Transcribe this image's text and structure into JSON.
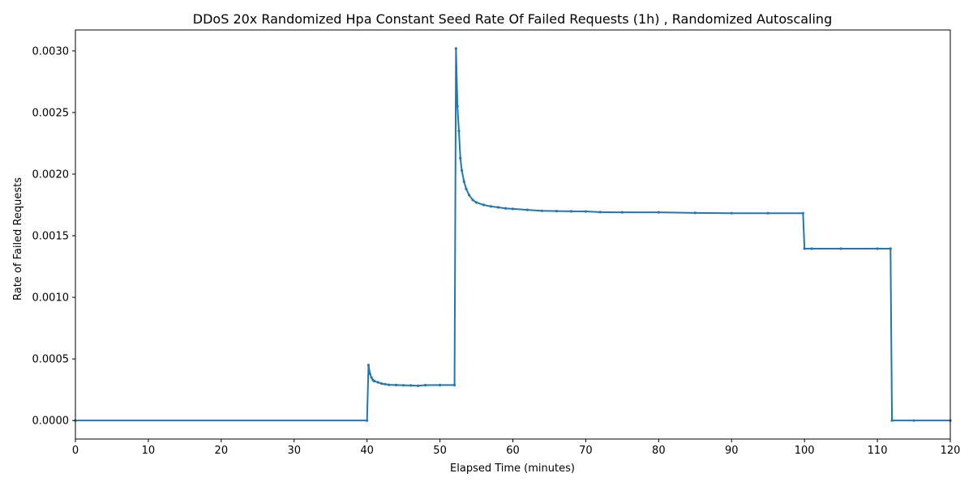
{
  "chart_data": {
    "type": "line",
    "title": "DDoS 20x Randomized Hpa Constant Seed Rate Of Failed Requests (1h) , Randomized Autoscaling",
    "xlabel": "Elapsed Time (minutes)",
    "ylabel": "Rate of Failed Requests",
    "xlim": [
      0,
      120
    ],
    "ylim": [
      -0.00015,
      0.00317
    ],
    "xticks": [
      0,
      10,
      20,
      30,
      40,
      50,
      60,
      70,
      80,
      90,
      100,
      110,
      120
    ],
    "xtick_labels": [
      "0",
      "10",
      "20",
      "30",
      "40",
      "50",
      "60",
      "70",
      "80",
      "90",
      "100",
      "110",
      "120"
    ],
    "yticks": [
      0.0,
      0.0005,
      0.001,
      0.0015,
      0.002,
      0.0025,
      0.003
    ],
    "ytick_labels": [
      "0.0000",
      "0.0005",
      "0.0010",
      "0.0015",
      "0.0020",
      "0.0025",
      "0.0030"
    ],
    "grid": false,
    "legend": "none",
    "color": "#1f77b4",
    "series": [
      {
        "x": [
          0,
          40.0,
          40.2,
          40.4,
          40.6,
          40.8,
          41.0,
          41.5,
          42.0,
          42.5,
          43.0,
          44.0,
          45.0,
          46.0,
          47.0,
          48.0,
          50.0,
          52.0,
          52.2,
          52.4,
          52.6,
          52.8,
          53.0,
          53.3,
          53.6,
          54.0,
          54.5,
          55.0,
          56.0,
          57.0,
          58.0,
          59.0,
          60.0,
          62.0,
          64.0,
          66.0,
          68.0,
          70.0,
          72.0,
          75.0,
          80.0,
          85.0,
          90.0,
          95.0,
          99.8,
          100.0,
          101.0,
          105.0,
          110.0,
          111.8,
          112.0,
          115.0,
          120.0
        ],
        "y": [
          0.0,
          0.0,
          0.00045,
          0.00038,
          0.00035,
          0.00033,
          0.00032,
          0.00031,
          0.0003,
          0.000295,
          0.00029,
          0.000288,
          0.000286,
          0.000285,
          0.000282,
          0.000287,
          0.000288,
          0.000288,
          0.00302,
          0.00255,
          0.00235,
          0.00213,
          0.00203,
          0.00194,
          0.00188,
          0.00183,
          0.00179,
          0.00177,
          0.00175,
          0.001738,
          0.00173,
          0.001722,
          0.001718,
          0.00171,
          0.001702,
          0.0017,
          0.001698,
          0.001697,
          0.001692,
          0.00169,
          0.00169,
          0.001685,
          0.001683,
          0.001683,
          0.001683,
          0.001395,
          0.001395,
          0.001395,
          0.001395,
          0.001395,
          0.0,
          0.0,
          0.0
        ]
      }
    ]
  }
}
